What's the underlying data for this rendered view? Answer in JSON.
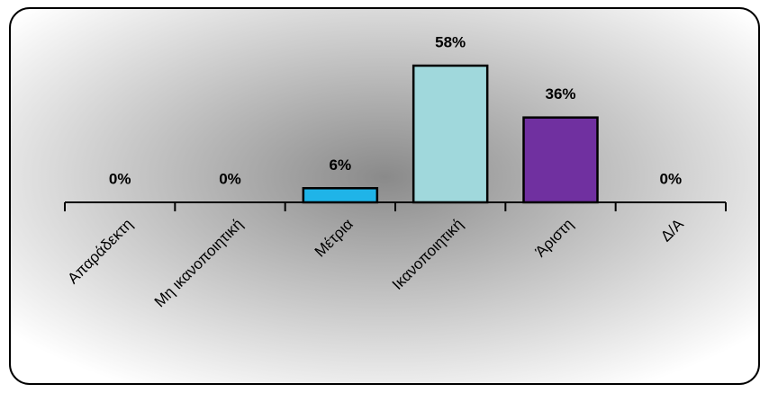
{
  "chart_data": {
    "type": "bar",
    "categories": [
      "Απαράδεκτη",
      "Μη ικανοποιητική",
      "Μέτρια",
      "Ικανοποιητική",
      "Άριστη",
      "Δ/Α"
    ],
    "values": [
      0,
      0,
      6,
      58,
      36,
      0
    ],
    "value_labels": [
      "0%",
      "0%",
      "6%",
      "58%",
      "36%",
      "0%"
    ],
    "colors": [
      "#1fb4e8",
      "#1fb4e8",
      "#1fb4e8",
      "#a0d8dc",
      "#7030a0",
      "#1fb4e8"
    ]
  }
}
